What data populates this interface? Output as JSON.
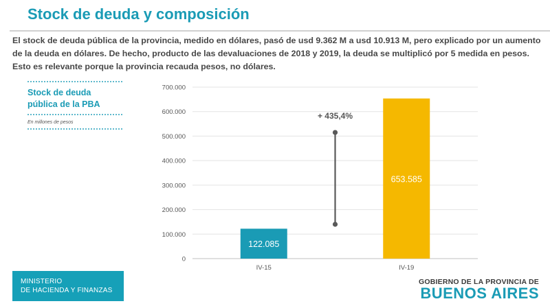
{
  "title": "Stock de deuda y composición",
  "intro": "El stock de deuda pública de la provincia, medido en dólares, pasó de usd 9.362 M a usd 10.913 M, pero explicado por un aumento de la deuda en dólares. De hecho, producto de las devaluaciones de 2018 y 2019, la deuda se multiplicó por 5 medida en pesos. Esto es relevante porque la provincia recauda pesos, no dólares.",
  "side_panel": {
    "title_line1": "Stock de deuda",
    "title_line2": "pública de la PBA",
    "note": "En millones de pesos"
  },
  "chart_data": {
    "type": "bar",
    "categories": [
      "IV-15",
      "IV-19"
    ],
    "values": [
      122085,
      653585
    ],
    "value_labels": [
      "122.085",
      "653.585"
    ],
    "colors": [
      "#1a9bb5",
      "#f5b800"
    ],
    "ylim": [
      0,
      700000
    ],
    "yticks": [
      0,
      100000,
      200000,
      300000,
      400000,
      500000,
      600000,
      700000
    ],
    "ytick_labels": [
      "0",
      "100.000",
      "200.000",
      "300.000",
      "400.000",
      "500.000",
      "600.000",
      "700.000"
    ],
    "grid": true,
    "annotation": {
      "text": "+ 435,4%",
      "from_value": 140000,
      "to_value": 515000
    }
  },
  "footer": {
    "ministry_line1": "MINISTERIO",
    "ministry_line2": "DE HACIENDA Y FINANZAS",
    "gov_line1": "GOBIERNO DE LA PROVINCIA DE",
    "gov_line2": "BUENOS AIRES"
  }
}
